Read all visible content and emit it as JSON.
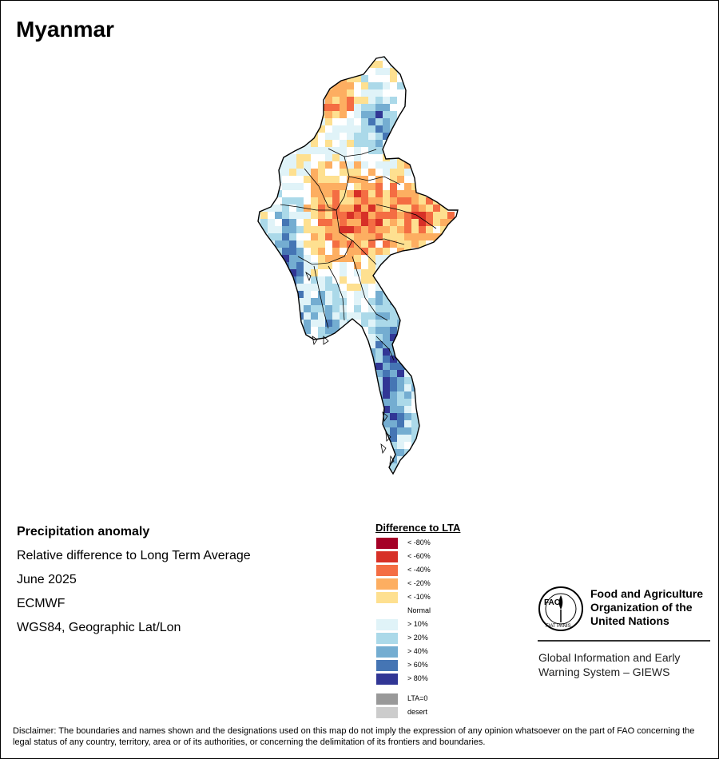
{
  "title": "Myanmar",
  "info": {
    "heading": "Precipitation anomaly",
    "line1": "Relative difference to Long Term Average",
    "line2": "June 2025",
    "line3": "ECMWF",
    "line4": "WGS84, Geographic Lat/Lon"
  },
  "legend": {
    "title": "Difference to LTA",
    "items": [
      {
        "label": "< -80%",
        "color": "#a50026"
      },
      {
        "label": "< -60%",
        "color": "#d73027"
      },
      {
        "label": "< -40%",
        "color": "#f46d43"
      },
      {
        "label": "< -20%",
        "color": "#fdae61"
      },
      {
        "label": "< -10%",
        "color": "#fee090"
      },
      {
        "label": "Normal",
        "color": "#ffffff"
      },
      {
        "label": "> 10%",
        "color": "#e0f3f8"
      },
      {
        "label": "> 20%",
        "color": "#abd9e9"
      },
      {
        "label": "> 40%",
        "color": "#74add1"
      },
      {
        "label": "> 60%",
        "color": "#4575b4"
      },
      {
        "label": "> 80%",
        "color": "#313695"
      }
    ],
    "extra": [
      {
        "label": "LTA=0",
        "color": "#999999"
      },
      {
        "label": "desert",
        "color": "#cccccc"
      }
    ]
  },
  "fao": {
    "name_line1": "Food and Agriculture",
    "name_line2": "Organization of the",
    "name_line3": "United Nations",
    "giews_line1": "Global Information and Early",
    "giews_line2": "Warning System – GIEWS",
    "logo_text": "FAO",
    "logo_motto": "FIAT PANIS"
  },
  "disclaimer": "Disclaimer: The boundaries and names shown and the designations used on this map do not imply the expression of any opinion whatsoever on the part of FAO concerning the legal status of any country, territory, area or of its authorities, or concerning the delimitation of its frontiers and boundaries."
}
